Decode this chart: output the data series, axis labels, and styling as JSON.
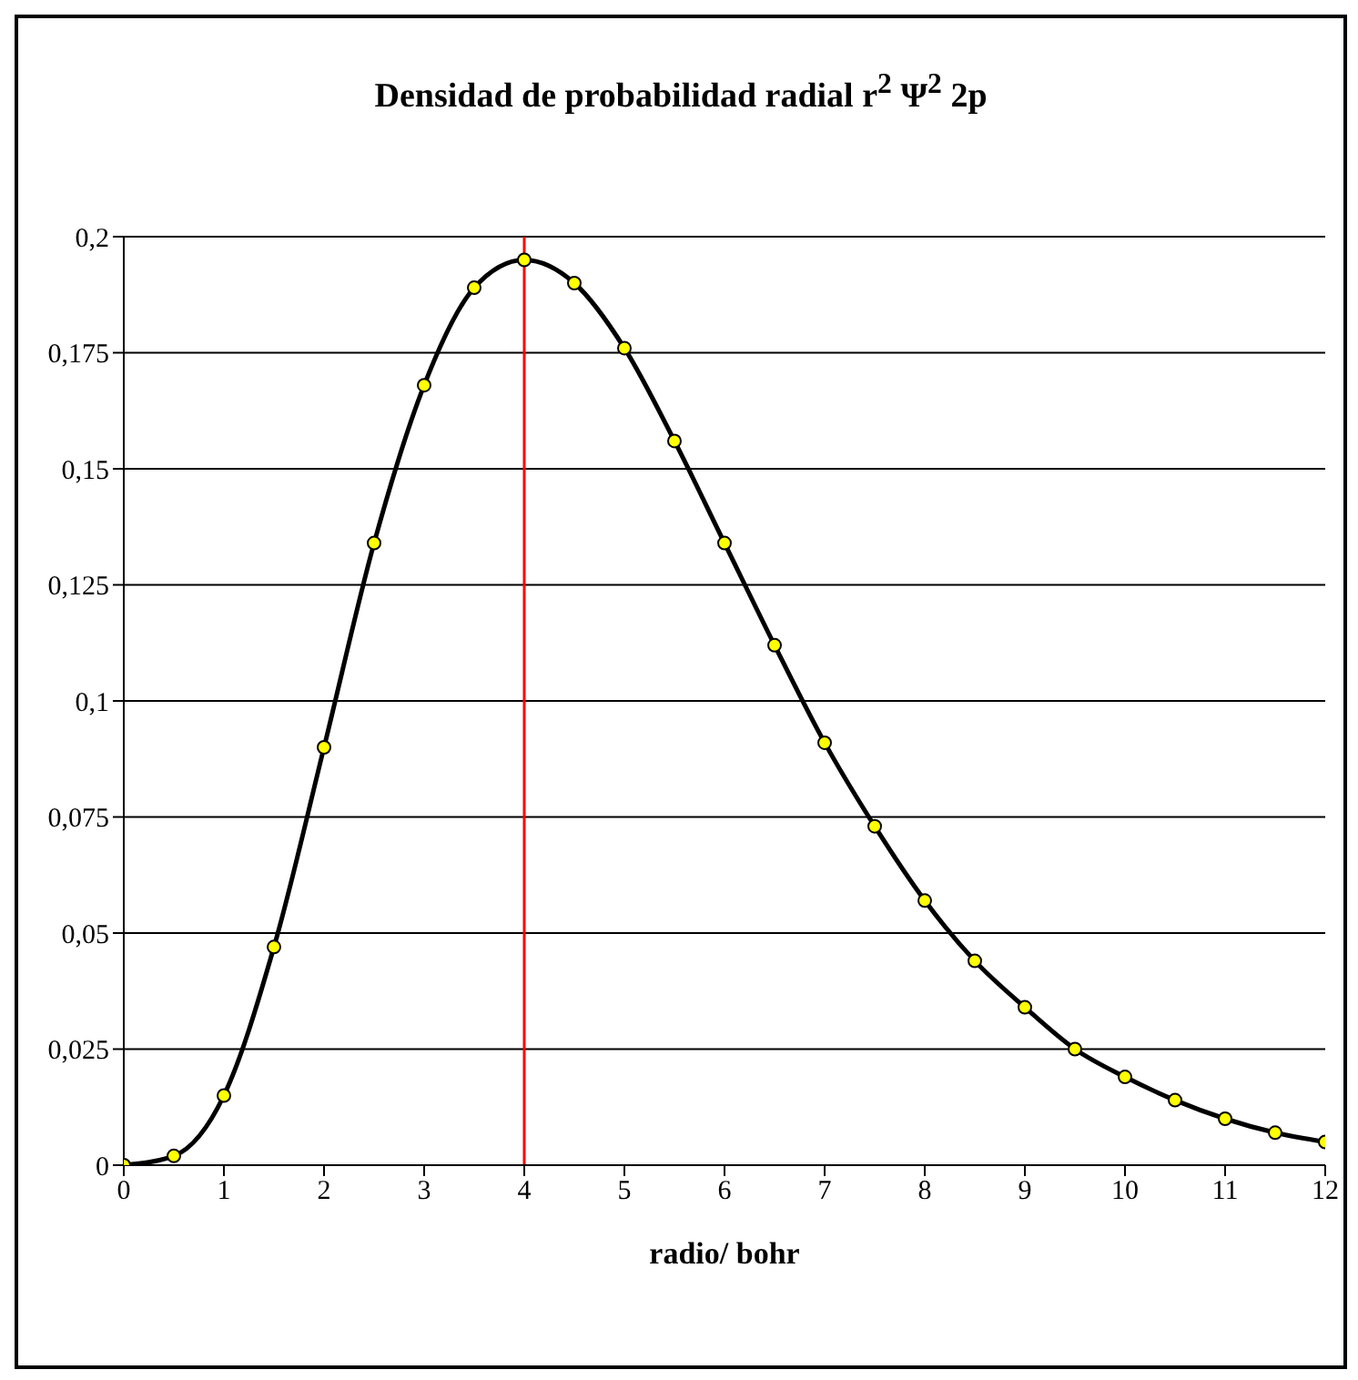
{
  "chart_data": {
    "type": "line",
    "title": "Densidad de probabilidad radial  r$^{2}$ Ψ$^{2}$ 2p",
    "xlabel": "radio/ bohr",
    "x": [
      0,
      0.5,
      1,
      1.5,
      2,
      2.5,
      3,
      3.5,
      4,
      4.5,
      5,
      5.5,
      6,
      6.5,
      7,
      7.5,
      8,
      8.5,
      9,
      9.5,
      10,
      10.5,
      11,
      11.5,
      12
    ],
    "series": [
      {
        "color": "#000000",
        "values": [
          0,
          0.002,
          0.015,
          0.047,
          0.09,
          0.134,
          0.168,
          0.189,
          0.195,
          0.19,
          0.176,
          0.156,
          0.134,
          0.112,
          0.091,
          0.073,
          0.057,
          0.044,
          0.034,
          0.025,
          0.019,
          0.014,
          0.01,
          0.007,
          0.005
        ]
      }
    ],
    "xlim": [
      0,
      12
    ],
    "xticks": [
      0,
      1,
      2,
      3,
      4,
      5,
      6,
      7,
      8,
      9,
      10,
      11,
      12
    ],
    "ylim": [
      0,
      0.2
    ],
    "yticks": [
      0,
      {
        "value": 0.025,
        "label": "0,025"
      },
      {
        "value": 0.05,
        "label": "0,05"
      },
      {
        "value": 0.075,
        "label": "0,075"
      },
      {
        "value": 0.1,
        "label": "0,1"
      },
      {
        "value": 0.125,
        "label": "0,125"
      },
      {
        "value": 0.15,
        "label": "0,15"
      },
      {
        "value": 0.175,
        "label": "0,175"
      },
      {
        "value": 0.2,
        "label": "0,2"
      }
    ],
    "grid": "y",
    "marker": "circle",
    "line_style": "solid",
    "legend": false,
    "ref_lines": [
      {
        "axis": "x",
        "value": 4,
        "color": "#ff0000"
      }
    ]
  }
}
